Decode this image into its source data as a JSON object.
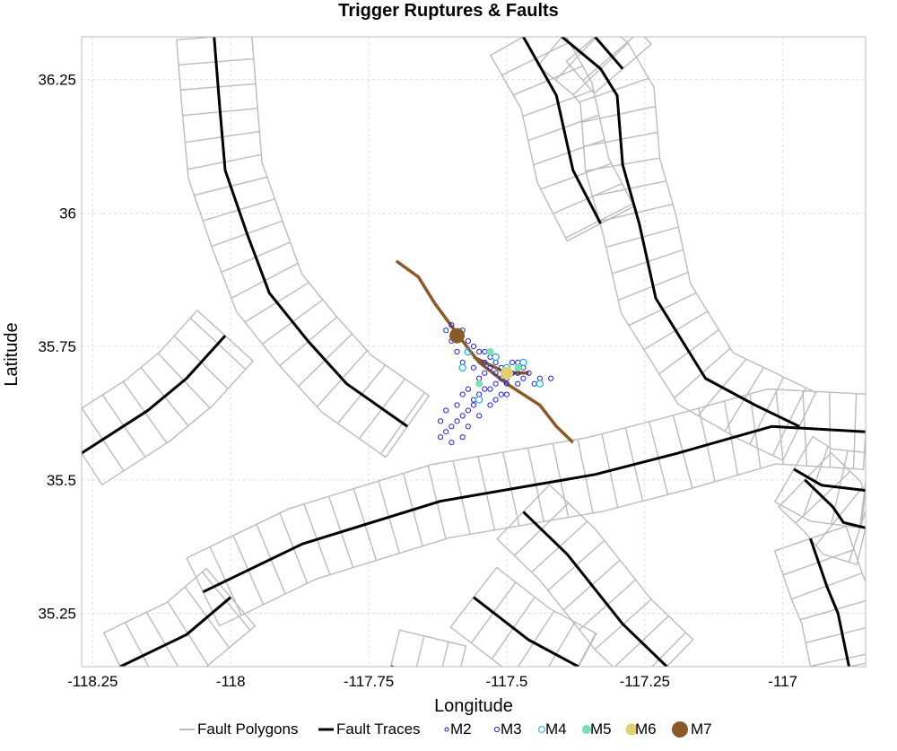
{
  "chart_data": {
    "type": "scatter",
    "title": "Trigger Ruptures & Faults",
    "xlabel": "Longitude",
    "ylabel": "Latitude",
    "xlim": [
      -118.27,
      -116.85
    ],
    "ylim": [
      35.15,
      36.33
    ],
    "xticks": [
      -118.25,
      -118,
      -117.75,
      -117.5,
      -117.25,
      -117
    ],
    "xtick_labels": [
      "-118.25",
      "-118",
      "-117.75",
      "-117.5",
      "-117.25",
      "-117"
    ],
    "yticks": [
      35.25,
      35.5,
      35.75,
      36,
      36.25
    ],
    "ytick_labels": [
      "35.25",
      "35.5",
      "35.75",
      "36",
      "36.25"
    ],
    "grid": true,
    "legend_position": "bottom",
    "legend": [
      {
        "label": "Fault Polygons",
        "kind": "line",
        "color": "#bbbbbb"
      },
      {
        "label": "Fault Traces",
        "kind": "line",
        "color": "#000000"
      },
      {
        "label": "M2",
        "kind": "marker",
        "color": "#1a1aa6"
      },
      {
        "label": "M3",
        "kind": "marker",
        "color": "#2222cc"
      },
      {
        "label": "M4",
        "kind": "marker",
        "color": "#22aadd"
      },
      {
        "label": "M5",
        "kind": "marker",
        "color": "#7de0b0"
      },
      {
        "label": "M6",
        "kind": "marker",
        "color": "#e0d070"
      },
      {
        "label": "M7",
        "kind": "marker",
        "color": "#8b5a2b"
      }
    ],
    "fault_traces": [
      [
        [
          -118.03,
          36.33
        ],
        [
          -118.02,
          36.2
        ],
        [
          -118.01,
          36.08
        ],
        [
          -117.97,
          35.96
        ],
        [
          -117.93,
          35.85
        ],
        [
          -117.86,
          35.76
        ],
        [
          -117.79,
          35.68
        ],
        [
          -117.68,
          35.6
        ]
      ],
      [
        [
          -118.05,
          35.29
        ],
        [
          -117.87,
          35.38
        ],
        [
          -117.62,
          35.46
        ],
        [
          -117.34,
          35.51
        ],
        [
          -117.19,
          35.55
        ],
        [
          -117.02,
          35.6
        ],
        [
          -116.85,
          35.59
        ]
      ],
      [
        [
          -118.27,
          35.55
        ],
        [
          -118.15,
          35.63
        ],
        [
          -118.08,
          35.69
        ],
        [
          -118.01,
          35.77
        ]
      ],
      [
        [
          -118.2,
          35.15
        ],
        [
          -118.08,
          35.21
        ],
        [
          -118.0,
          35.28
        ]
      ],
      [
        [
          -117.71,
          35.15
        ],
        [
          -117.59,
          35.12
        ]
      ],
      [
        [
          -117.47,
          35.44
        ],
        [
          -117.39,
          35.36
        ],
        [
          -117.29,
          35.23
        ],
        [
          -117.21,
          35.15
        ]
      ],
      [
        [
          -117.56,
          35.28
        ],
        [
          -117.46,
          35.2
        ],
        [
          -117.37,
          35.15
        ]
      ],
      [
        [
          -117.47,
          36.33
        ],
        [
          -117.41,
          36.22
        ],
        [
          -117.38,
          36.08
        ],
        [
          -117.33,
          35.98
        ]
      ],
      [
        [
          -117.4,
          36.33
        ],
        [
          -117.33,
          36.27
        ],
        [
          -117.3,
          36.22
        ],
        [
          -117.29,
          36.09
        ],
        [
          -117.26,
          35.98
        ],
        [
          -117.23,
          35.84
        ],
        [
          -117.14,
          35.69
        ],
        [
          -117.05,
          35.64
        ],
        [
          -116.97,
          35.6
        ]
      ],
      [
        [
          -117.34,
          36.33
        ],
        [
          -117.29,
          36.27
        ]
      ],
      [
        [
          -116.96,
          35.5
        ],
        [
          -116.91,
          35.45
        ],
        [
          -116.89,
          35.42
        ],
        [
          -116.85,
          35.41
        ]
      ],
      [
        [
          -116.95,
          35.39
        ],
        [
          -116.92,
          35.3
        ],
        [
          -116.9,
          35.25
        ],
        [
          -116.88,
          35.15
        ]
      ],
      [
        [
          -116.98,
          35.52
        ],
        [
          -116.93,
          35.49
        ],
        [
          -116.85,
          35.48
        ]
      ]
    ],
    "ruptures": [
      [
        [
          -117.7,
          35.91
        ],
        [
          -117.66,
          35.88
        ],
        [
          -117.63,
          35.83
        ],
        [
          -117.58,
          35.76
        ],
        [
          -117.55,
          35.72
        ],
        [
          -117.5,
          35.68
        ],
        [
          -117.44,
          35.64
        ],
        [
          -117.41,
          35.6
        ],
        [
          -117.38,
          35.57
        ]
      ],
      [
        [
          -117.56,
          35.73
        ],
        [
          -117.5,
          35.7
        ],
        [
          -117.46,
          35.7
        ]
      ]
    ],
    "rupture_color": "#8b5a2b",
    "events": [
      {
        "mag": 7,
        "x": -117.59,
        "y": 35.77
      },
      {
        "mag": 6,
        "x": -117.5,
        "y": 35.7
      }
    ],
    "m3_series": [
      [
        -117.61,
        35.78
      ],
      [
        -117.6,
        35.79
      ],
      [
        -117.58,
        35.78
      ],
      [
        -117.57,
        35.76
      ],
      [
        -117.56,
        35.75
      ],
      [
        -117.55,
        35.74
      ],
      [
        -117.54,
        35.74
      ],
      [
        -117.54,
        35.72
      ],
      [
        -117.53,
        35.73
      ],
      [
        -117.53,
        35.71
      ],
      [
        -117.52,
        35.72
      ],
      [
        -117.52,
        35.7
      ],
      [
        -117.51,
        35.69
      ],
      [
        -117.51,
        35.71
      ],
      [
        -117.5,
        35.68
      ],
      [
        -117.5,
        35.69
      ],
      [
        -117.49,
        35.7
      ],
      [
        -117.48,
        35.7
      ],
      [
        -117.48,
        35.68
      ],
      [
        -117.47,
        35.69
      ],
      [
        -117.47,
        35.71
      ],
      [
        -117.46,
        35.7
      ],
      [
        -117.45,
        35.68
      ],
      [
        -117.44,
        35.69
      ],
      [
        -117.52,
        35.68
      ],
      [
        -117.53,
        35.67
      ],
      [
        -117.54,
        35.67
      ],
      [
        -117.55,
        35.66
      ],
      [
        -117.56,
        35.65
      ],
      [
        -117.56,
        35.64
      ],
      [
        -117.57,
        35.63
      ],
      [
        -117.58,
        35.62
      ],
      [
        -117.59,
        35.61
      ],
      [
        -117.6,
        35.6
      ],
      [
        -117.61,
        35.59
      ],
      [
        -117.62,
        35.58
      ],
      [
        -117.62,
        35.61
      ],
      [
        -117.61,
        35.63
      ],
      [
        -117.59,
        35.64
      ],
      [
        -117.58,
        35.66
      ],
      [
        -117.57,
        35.67
      ],
      [
        -117.55,
        35.69
      ],
      [
        -117.54,
        35.7
      ],
      [
        -117.56,
        35.71
      ],
      [
        -117.58,
        35.72
      ],
      [
        -117.59,
        35.74
      ],
      [
        -117.6,
        35.76
      ],
      [
        -117.49,
        35.72
      ],
      [
        -117.48,
        35.72
      ],
      [
        -117.51,
        35.66
      ],
      [
        -117.5,
        35.66
      ],
      [
        -117.52,
        35.65
      ],
      [
        -117.53,
        35.64
      ],
      [
        -117.55,
        35.62
      ],
      [
        -117.57,
        35.6
      ],
      [
        -117.42,
        35.69
      ],
      [
        -117.6,
        35.57
      ],
      [
        -117.58,
        35.58
      ]
    ],
    "m4_series": [
      [
        -117.57,
        35.74
      ],
      [
        -117.52,
        35.73
      ],
      [
        -117.47,
        35.72
      ],
      [
        -117.44,
        35.68
      ],
      [
        -117.55,
        35.65
      ],
      [
        -117.5,
        35.71
      ],
      [
        -117.58,
        35.71
      ]
    ],
    "m5_series": [
      [
        -117.53,
        35.74
      ],
      [
        -117.48,
        35.71
      ],
      [
        -117.55,
        35.68
      ]
    ]
  }
}
